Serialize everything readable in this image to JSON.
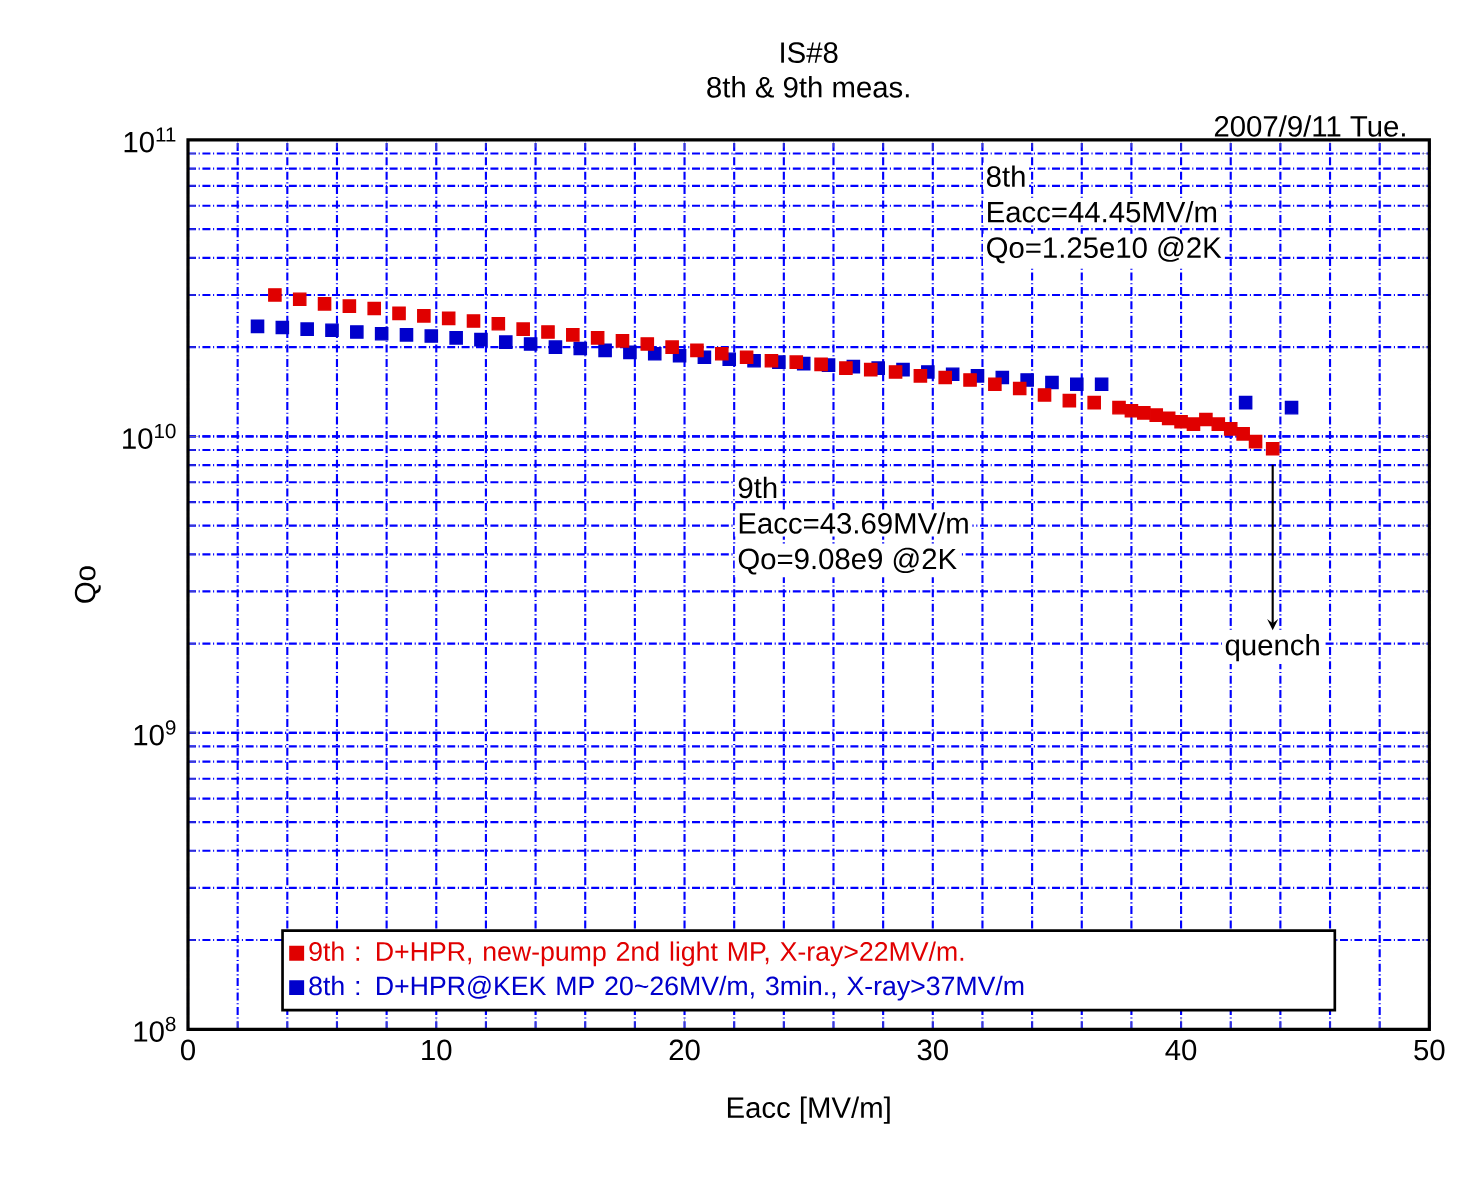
{
  "chart_data": {
    "type": "scatter",
    "title": "IS#8",
    "subtitle": "8th & 9th meas.",
    "xlabel": "Eacc [MV/m]",
    "ylabel": "Qo",
    "log": "y",
    "grid": true,
    "marker": "square",
    "legend": "bottom",
    "xlim": [
      0,
      50
    ],
    "xticks": [
      0,
      10,
      20,
      30,
      40,
      50
    ],
    "ylim": [
      100000000.0,
      100000000000.0
    ],
    "yticks": [
      {
        "value": 100000000.0,
        "label": "10$^{8}$"
      },
      {
        "value": 1000000000.0,
        "label": "10$^{9}$"
      },
      {
        "value": 10000000000.0,
        "label": "10$^{10}$"
      },
      {
        "value": 100000000000.0,
        "label": "10$^{11}$"
      }
    ],
    "annotations": [
      "2007/9/11 Tue.",
      "8th",
      "Eacc=44.45MV/m",
      "Qo=1.25e10 @2K",
      "9th",
      "Eacc=43.69MV/m",
      "Qo=9.08e9 @2K",
      {
        "text": "quench",
        "x": 43.69,
        "y": 9080000000.0
      }
    ],
    "series": [
      {
        "name": "9th : D+HPR, new-pump 2nd light MP, X-ray>22MV/m.",
        "color": "#e00000",
        "x": [
          3.5,
          4.5,
          5.5,
          6.5,
          7.5,
          8.5,
          9.5,
          10.5,
          11.5,
          12.5,
          13.5,
          14.5,
          15.5,
          16.5,
          17.5,
          18.5,
          19.5,
          20.5,
          21.5,
          22.5,
          23.5,
          24.5,
          25.5,
          26.5,
          27.5,
          28.5,
          29.5,
          30.5,
          31.5,
          32.5,
          33.5,
          34.5,
          35.5,
          36.5,
          37.5,
          38,
          38.5,
          39,
          39.5,
          40,
          40.5,
          41,
          41.5,
          42,
          42.5,
          43,
          43.69
        ],
        "values": [
          30000000000.0,
          29000000000.0,
          28000000000.0,
          27500000000.0,
          27000000000.0,
          26000000000.0,
          25500000000.0,
          25000000000.0,
          24500000000.0,
          24000000000.0,
          23000000000.0,
          22500000000.0,
          22000000000.0,
          21500000000.0,
          21000000000.0,
          20500000000.0,
          20000000000.0,
          19500000000.0,
          19000000000.0,
          18500000000.0,
          18000000000.0,
          17800000000.0,
          17500000000.0,
          17000000000.0,
          16800000000.0,
          16500000000.0,
          16000000000.0,
          15800000000.0,
          15500000000.0,
          15000000000.0,
          14500000000.0,
          13800000000.0,
          13200000000.0,
          13000000000.0,
          12500000000.0,
          12200000000.0,
          12000000000.0,
          11800000000.0,
          11500000000.0,
          11200000000.0,
          11000000000.0,
          11400000000.0,
          11000000000.0,
          10600000000.0,
          10200000000.0,
          9600000000.0,
          9080000000.0
        ]
      },
      {
        "name": "8th : D+HPR@KEK MP 20~26MV/m, 3min., X-ray>37MV/m",
        "color": "#0000cc",
        "x": [
          2.8,
          3.8,
          4.8,
          5.8,
          6.8,
          7.8,
          8.8,
          9.8,
          10.8,
          11.8,
          12.8,
          13.8,
          14.8,
          15.8,
          16.8,
          17.8,
          18.8,
          19.8,
          20.8,
          21.8,
          22.8,
          23.8,
          24.8,
          25.8,
          26.8,
          27.8,
          28.8,
          29.8,
          30.8,
          31.8,
          32.8,
          33.8,
          34.8,
          35.8,
          36.8,
          42.6,
          44.45
        ],
        "values": [
          23500000000.0,
          23300000000.0,
          23000000000.0,
          22800000000.0,
          22500000000.0,
          22200000000.0,
          22000000000.0,
          21800000000.0,
          21500000000.0,
          21200000000.0,
          20800000000.0,
          20500000000.0,
          20000000000.0,
          19800000000.0,
          19500000000.0,
          19200000000.0,
          19000000000.0,
          18700000000.0,
          18500000000.0,
          18200000000.0,
          18000000000.0,
          17800000000.0,
          17600000000.0,
          17400000000.0,
          17200000000.0,
          17000000000.0,
          16800000000.0,
          16500000000.0,
          16200000000.0,
          16000000000.0,
          15800000000.0,
          15500000000.0,
          15200000000.0,
          15000000000.0,
          15000000000.0,
          13000000000.0,
          12500000000.0
        ]
      }
    ]
  }
}
